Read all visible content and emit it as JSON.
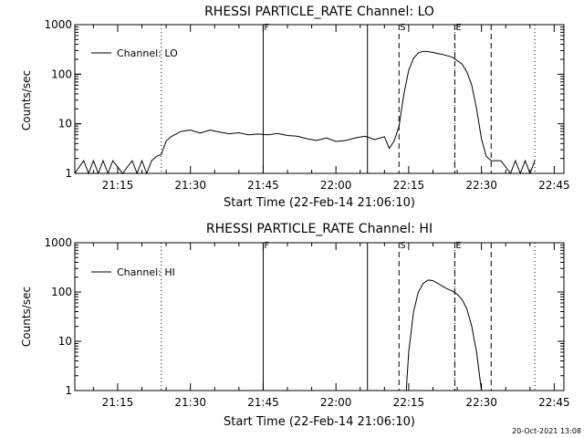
{
  "footer_timestamp": "20-Oct-2021 13:08",
  "chart_data": [
    {
      "type": "line",
      "title": "RHESSI PARTICLE_RATE Channel: LO",
      "ylabel": "Counts/sec",
      "xlabel": "Start Time (22-Feb-14 21:06:10)",
      "yscale": "log",
      "ylim": [
        1,
        1000
      ],
      "xlim": [
        "21:06:10",
        "22:47:00"
      ],
      "x_tick_labels": [
        "21:15",
        "21:30",
        "21:45",
        "22:00",
        "22:15",
        "22:30",
        "22:45"
      ],
      "y_tick_labels": [
        "1",
        "10",
        "100",
        "1000"
      ],
      "legend": {
        "label": "Channel: LO",
        "position": "top-left"
      },
      "markers": [
        {
          "label": "F",
          "time": "21:45:00",
          "style": "solid"
        },
        {
          "label": "",
          "time": "22:06:30",
          "style": "solid"
        },
        {
          "label": "S",
          "time": "22:13:00",
          "style": "dashed"
        },
        {
          "label": "E",
          "time": "22:24:30",
          "style": "dashed"
        },
        {
          "label": "",
          "time": "22:32:00",
          "style": "dashed"
        },
        {
          "label": "",
          "time": "21:24:00",
          "style": "dotted"
        },
        {
          "label": "",
          "time": "22:24:30",
          "style": "dotted"
        },
        {
          "label": "",
          "time": "22:41:00",
          "style": "dotted"
        }
      ],
      "series": [
        {
          "name": "Channel: LO",
          "x": [
            "21:06:10",
            "21:08:00",
            "21:09:00",
            "21:10:00",
            "21:11:00",
            "21:12:00",
            "21:13:00",
            "21:14:00",
            "21:16:00",
            "21:18:00",
            "21:19:00",
            "21:20:00",
            "21:21:00",
            "21:22:00",
            "21:23:00",
            "21:24:00",
            "21:25:00",
            "21:26:00",
            "21:28:00",
            "21:30:00",
            "21:32:00",
            "21:34:00",
            "21:36:00",
            "21:38:00",
            "21:40:00",
            "21:42:00",
            "21:44:00",
            "21:46:00",
            "21:48:00",
            "21:50:00",
            "21:52:00",
            "21:54:00",
            "21:56:00",
            "21:58:00",
            "22:00:00",
            "22:02:00",
            "22:04:00",
            "22:06:00",
            "22:08:00",
            "22:10:00",
            "22:11:00",
            "22:12:00",
            "22:13:00",
            "22:14:00",
            "22:15:00",
            "22:16:00",
            "22:17:00",
            "22:18:00",
            "22:19:00",
            "22:20:00",
            "22:22:00",
            "22:24:00",
            "22:26:00",
            "22:27:00",
            "22:28:00",
            "22:29:00",
            "22:30:00",
            "22:31:00",
            "22:32:00",
            "22:34:00",
            "22:36:00",
            "22:37:00",
            "22:38:00",
            "22:39:00",
            "22:40:00",
            "22:41:00"
          ],
          "y": [
            1,
            1.8,
            1,
            1.8,
            1,
            1.8,
            1,
            1.8,
            1,
            1.8,
            1,
            1.8,
            1,
            1.8,
            2.2,
            2.4,
            4.5,
            5.5,
            7,
            7.5,
            6.5,
            7.5,
            6.8,
            6.3,
            6.6,
            6,
            6.2,
            6,
            6.4,
            5.8,
            5.6,
            5,
            4.6,
            5.2,
            4.4,
            4.6,
            5.2,
            5.6,
            4.8,
            5.5,
            3.2,
            4.5,
            9,
            40,
            120,
            210,
            270,
            290,
            285,
            275,
            250,
            220,
            160,
            110,
            60,
            20,
            5,
            2.2,
            1.8,
            1.8,
            1,
            1.8,
            1,
            1.8,
            1,
            1.8
          ]
        }
      ]
    },
    {
      "type": "line",
      "title": "RHESSI PARTICLE_RATE Channel: HI",
      "ylabel": "Counts/sec",
      "xlabel": "Start Time (22-Feb-14 21:06:10)",
      "yscale": "log",
      "ylim": [
        1,
        1000
      ],
      "xlim": [
        "21:06:10",
        "22:47:00"
      ],
      "x_tick_labels": [
        "21:15",
        "21:30",
        "21:45",
        "22:00",
        "22:15",
        "22:30",
        "22:45"
      ],
      "y_tick_labels": [
        "1",
        "10",
        "100",
        "1000"
      ],
      "legend": {
        "label": "Channel: HI",
        "position": "top-left"
      },
      "markers": [
        {
          "label": "F",
          "time": "21:45:00",
          "style": "solid"
        },
        {
          "label": "",
          "time": "22:06:30",
          "style": "solid"
        },
        {
          "label": "S",
          "time": "22:13:00",
          "style": "dashed"
        },
        {
          "label": "E",
          "time": "22:24:30",
          "style": "dashed"
        },
        {
          "label": "",
          "time": "22:32:00",
          "style": "dashed"
        },
        {
          "label": "",
          "time": "21:24:00",
          "style": "dotted"
        },
        {
          "label": "",
          "time": "22:24:30",
          "style": "dotted"
        },
        {
          "label": "",
          "time": "22:41:00",
          "style": "dotted"
        }
      ],
      "series": [
        {
          "name": "Channel: HI",
          "x": [
            "22:14:30",
            "22:15:00",
            "22:16:00",
            "22:17:00",
            "22:18:00",
            "22:19:00",
            "22:20:00",
            "22:21:00",
            "22:22:00",
            "22:23:00",
            "22:24:00",
            "22:25:00",
            "22:26:00",
            "22:27:00",
            "22:28:00",
            "22:29:00",
            "22:30:00"
          ],
          "y": [
            1,
            6,
            40,
            100,
            150,
            175,
            170,
            150,
            130,
            115,
            105,
            90,
            70,
            45,
            20,
            6,
            1
          ]
        }
      ]
    }
  ]
}
